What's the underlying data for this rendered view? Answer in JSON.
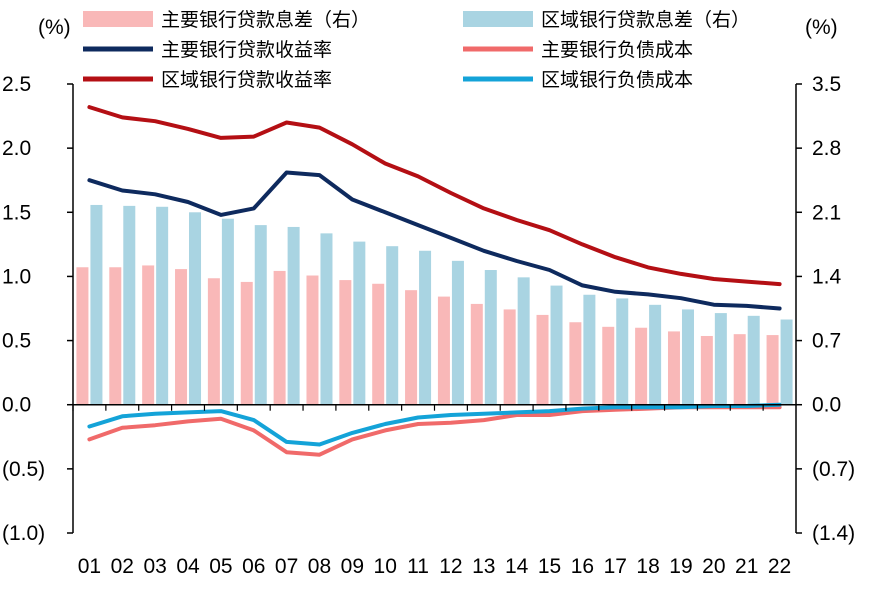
{
  "chart_data": {
    "type": "bar+line",
    "title": "",
    "left_axis": {
      "unit_label": "(%)",
      "ylim": [
        -1.0,
        2.5
      ],
      "ticks": [
        2.5,
        2.0,
        1.5,
        1.0,
        0.5,
        0.0,
        -0.5,
        -1.0
      ],
      "tick_labels": [
        "2.5",
        "2.0",
        "1.5",
        "1.0",
        "0.5",
        "0.0",
        "(0.5)",
        "(1.0)"
      ]
    },
    "right_axis": {
      "unit_label": "(%)",
      "ylim": [
        -1.4,
        3.5
      ],
      "ticks": [
        3.5,
        2.8,
        2.1,
        1.4,
        0.7,
        0.0,
        -0.7,
        -1.4
      ],
      "tick_labels": [
        "3.5",
        "2.8",
        "2.1",
        "1.4",
        "0.7",
        "0.0",
        "(0.7)",
        "(1.4)"
      ]
    },
    "categories": [
      "01",
      "02",
      "03",
      "04",
      "05",
      "06",
      "07",
      "08",
      "09",
      "10",
      "11",
      "12",
      "13",
      "14",
      "15",
      "16",
      "17",
      "18",
      "19",
      "20",
      "21",
      "22"
    ],
    "bar_series": [
      {
        "name": "主要银行贷款息差（右）",
        "axis": "right",
        "color": "#f9b8b8",
        "values": [
          1.5,
          1.5,
          1.52,
          1.48,
          1.38,
          1.34,
          1.46,
          1.41,
          1.36,
          1.32,
          1.25,
          1.18,
          1.1,
          1.04,
          0.98,
          0.9,
          0.85,
          0.84,
          0.8,
          0.75,
          0.77,
          0.76
        ]
      },
      {
        "name": "区域银行贷款息差（右）",
        "axis": "right",
        "color": "#a9d4e2",
        "values": [
          2.18,
          2.17,
          2.16,
          2.1,
          2.03,
          1.96,
          1.94,
          1.87,
          1.78,
          1.73,
          1.68,
          1.57,
          1.47,
          1.39,
          1.3,
          1.2,
          1.16,
          1.09,
          1.04,
          1.0,
          0.97,
          0.93
        ]
      }
    ],
    "line_series": [
      {
        "name": "主要银行贷款收益率",
        "axis": "left",
        "color": "#0e2a5e",
        "values": [
          1.75,
          1.67,
          1.64,
          1.58,
          1.48,
          1.53,
          1.81,
          1.79,
          1.6,
          1.5,
          1.4,
          1.3,
          1.2,
          1.12,
          1.05,
          0.93,
          0.88,
          0.86,
          0.83,
          0.78,
          0.77,
          0.75
        ]
      },
      {
        "name": "区域银行贷款收益率",
        "axis": "left",
        "color": "#b40f14",
        "values": [
          2.32,
          2.24,
          2.21,
          2.15,
          2.08,
          2.09,
          2.2,
          2.16,
          2.03,
          1.88,
          1.78,
          1.65,
          1.53,
          1.44,
          1.36,
          1.25,
          1.15,
          1.07,
          1.02,
          0.98,
          0.96,
          0.94
        ]
      },
      {
        "name": "主要银行负债成本",
        "axis": "left",
        "color": "#f06a6a",
        "values": [
          -0.27,
          -0.18,
          -0.16,
          -0.13,
          -0.11,
          -0.2,
          -0.37,
          -0.39,
          -0.27,
          -0.2,
          -0.15,
          -0.14,
          -0.12,
          -0.08,
          -0.08,
          -0.05,
          -0.04,
          -0.03,
          -0.02,
          -0.02,
          -0.02,
          -0.02
        ]
      },
      {
        "name": "区域银行负债成本",
        "axis": "left",
        "color": "#14a3d8",
        "values": [
          -0.17,
          -0.09,
          -0.07,
          -0.06,
          -0.05,
          -0.12,
          -0.29,
          -0.31,
          -0.22,
          -0.15,
          -0.1,
          -0.08,
          -0.07,
          -0.06,
          -0.05,
          -0.03,
          -0.02,
          -0.02,
          -0.02,
          -0.01,
          -0.01,
          0.0
        ]
      }
    ],
    "legend": {
      "placement": "top",
      "entries": [
        {
          "label": "主要银行贷款息差（右）",
          "kind": "bar",
          "color": "#f9b8b8"
        },
        {
          "label": "区域银行贷款息差（右）",
          "kind": "bar",
          "color": "#a9d4e2"
        },
        {
          "label": "主要银行贷款收益率",
          "kind": "line",
          "color": "#0e2a5e"
        },
        {
          "label": "主要银行负债成本",
          "kind": "line",
          "color": "#f06a6a"
        },
        {
          "label": "区域银行贷款收益率",
          "kind": "line",
          "color": "#b40f14"
        },
        {
          "label": "区域银行负债成本",
          "kind": "line",
          "color": "#14a3d8"
        }
      ]
    },
    "grid": false
  }
}
